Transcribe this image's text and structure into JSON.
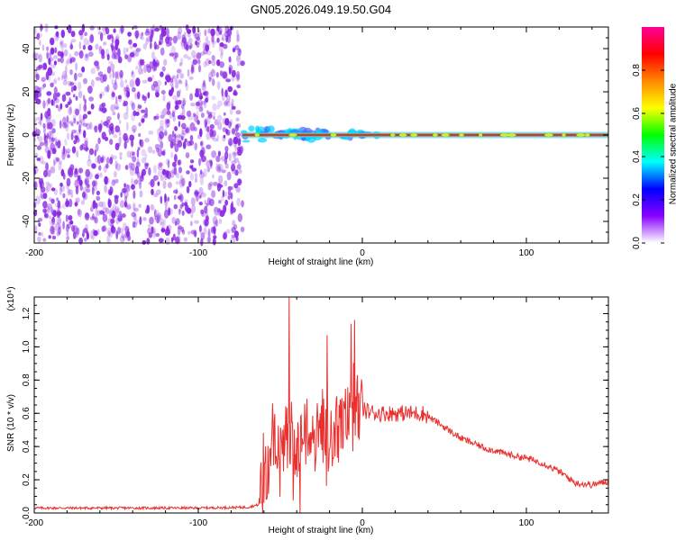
{
  "title": "GN05.2026.049.19.50.G04",
  "chart_data": [
    {
      "type": "heatmap",
      "name": "spectrogram",
      "xlabel": "Height of straight line (km)",
      "ylabel": "Frequency (Hz)",
      "xlim": [
        -200,
        150
      ],
      "ylim": [
        -50,
        50
      ],
      "xticks": [
        -200,
        -100,
        0,
        100
      ],
      "yticks": [
        -40,
        -20,
        0,
        20,
        40
      ],
      "colorbar": {
        "label": "Normalized spectral amplitude",
        "range": [
          0,
          1
        ],
        "ticks": [
          0.0,
          0.2,
          0.4,
          0.6,
          0.8
        ],
        "colormap": [
          "#ffffff",
          "#8800ff",
          "#0000ff",
          "#00ffff",
          "#00ff00",
          "#ffff00",
          "#ff8800",
          "#ff0000",
          "#ff0099"
        ]
      },
      "noise_region_x": [
        -200,
        -73
      ],
      "signal_start_x": -73,
      "carrier_frequency_hz": 0,
      "noise_color": "#8a2be2"
    },
    {
      "type": "line",
      "name": "snr",
      "xlabel": "Height of straight line (km)",
      "ylabel": "SNR (10 * v/v)",
      "y_multiplier": "(x10⁴)",
      "xlim": [
        -200,
        150
      ],
      "ylim": [
        0,
        1.3
      ],
      "xticks": [
        -200,
        -100,
        0,
        100
      ],
      "yticks": [
        0.0,
        0.2,
        0.4,
        0.6,
        0.8,
        1.0,
        1.2
      ],
      "line_color": "#e8312f",
      "x": [
        -200,
        -150,
        -100,
        -70,
        -63,
        -58,
        -55,
        -50,
        -45,
        -40,
        -35,
        -30,
        -25,
        -20,
        -15,
        -10,
        -5,
        0,
        10,
        20,
        30,
        37,
        45,
        60,
        75,
        90,
        100,
        110,
        120,
        130,
        140,
        150
      ],
      "y": [
        0.03,
        0.03,
        0.03,
        0.035,
        0.05,
        0.25,
        0.45,
        0.3,
        0.55,
        0.35,
        0.5,
        0.38,
        0.55,
        0.42,
        0.5,
        0.55,
        0.6,
        0.62,
        0.6,
        0.6,
        0.6,
        0.6,
        0.55,
        0.45,
        0.39,
        0.35,
        0.33,
        0.3,
        0.25,
        0.18,
        0.17,
        0.19
      ]
    }
  ]
}
